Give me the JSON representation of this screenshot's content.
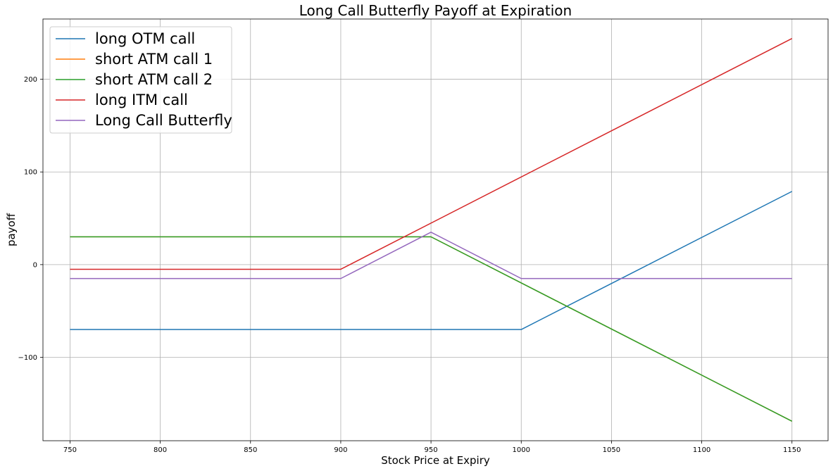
{
  "chart_data": {
    "type": "line",
    "title": "Long Call Butterfly Payoff at Expiration",
    "xlabel": "Stock Price at Expiry",
    "ylabel": "payoff",
    "xlim": [
      735,
      1170
    ],
    "ylim": [
      -190,
      265
    ],
    "xticks": [
      750,
      800,
      850,
      900,
      950,
      1000,
      1050,
      1100,
      1150
    ],
    "yticks": [
      -100,
      0,
      100,
      200
    ],
    "grid": true,
    "legend_position": "top-left",
    "series": [
      {
        "name": "long OTM call",
        "color": "#1f77b4",
        "x": [
          750,
          1000,
          1150
        ],
        "y": [
          -70,
          -70,
          79
        ]
      },
      {
        "name": "short ATM call 1",
        "color": "#ff7f0e",
        "x": [
          750,
          950,
          1150
        ],
        "y": [
          30,
          30,
          -169
        ]
      },
      {
        "name": "short ATM call 2",
        "color": "#2ca02c",
        "x": [
          750,
          950,
          1150
        ],
        "y": [
          30,
          30,
          -169
        ]
      },
      {
        "name": "long ITM call",
        "color": "#d62728",
        "x": [
          750,
          900,
          1150
        ],
        "y": [
          -5,
          -5,
          244
        ]
      },
      {
        "name": "Long Call Butterfly",
        "color": "#9467bd",
        "x": [
          750,
          900,
          950,
          1000,
          1150
        ],
        "y": [
          -15,
          -15,
          35,
          -15,
          -15
        ]
      }
    ]
  }
}
